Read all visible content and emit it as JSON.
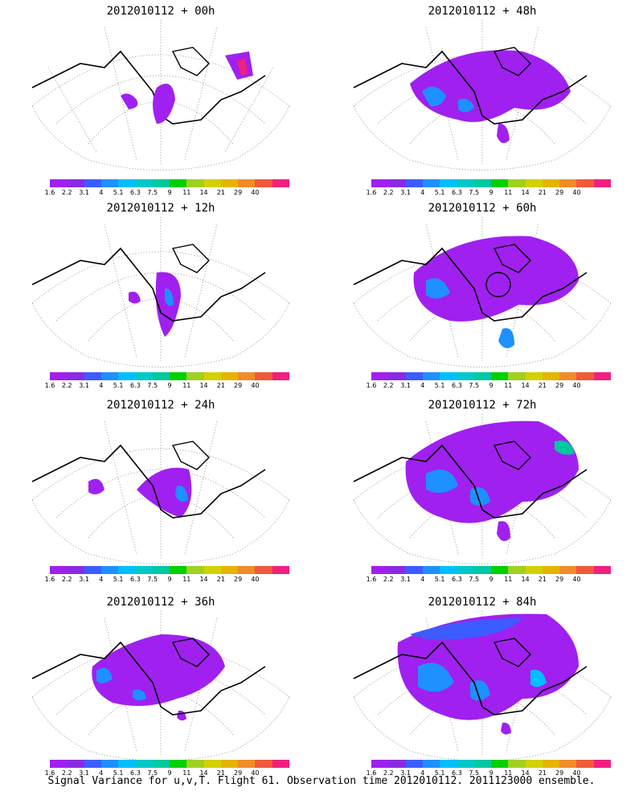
{
  "panels": [
    {
      "title": "2012010112 + 00h"
    },
    {
      "title": "2012010112 + 48h"
    },
    {
      "title": "2012010112 + 12h"
    },
    {
      "title": "2012010112 + 60h"
    },
    {
      "title": "2012010112 + 24h"
    },
    {
      "title": "2012010112 + 72h"
    },
    {
      "title": "2012010112 + 36h"
    },
    {
      "title": "2012010112 + 84h"
    }
  ],
  "colorbar": {
    "ticks": [
      "1.6",
      "2.2",
      "3.1",
      "4",
      "5.1",
      "6.3",
      "7.5",
      "9",
      "11",
      "14",
      "21",
      "29",
      "40"
    ],
    "colors": [
      "#a020f0",
      "#8a2be2",
      "#3c5cff",
      "#1e90ff",
      "#00bfff",
      "#00c8c8",
      "#00c8a0",
      "#00d000",
      "#a0d020",
      "#d2d200",
      "#e6b400",
      "#f08c28",
      "#f05a3c",
      "#f02080"
    ]
  },
  "footer": "Signal Variance for u,v,T. Flight 61. Observation time 2012010112. 2011123000 ensemble."
}
